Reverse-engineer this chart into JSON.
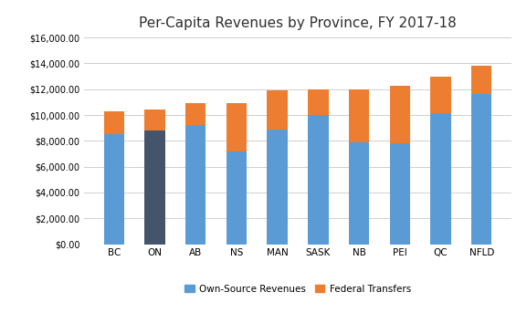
{
  "provinces": [
    "BC",
    "ON",
    "AB",
    "NS",
    "MAN",
    "SASK",
    "NB",
    "PEI",
    "QC",
    "NFLD"
  ],
  "own_source": [
    8550,
    8800,
    9200,
    7150,
    8900,
    10000,
    7900,
    7800,
    10150,
    11600
  ],
  "federal_transfers": [
    1750,
    1600,
    1700,
    3750,
    3000,
    2000,
    4100,
    4500,
    2800,
    2200
  ],
  "own_source_color_default": "#5b9bd5",
  "own_source_color_on": "#44546a",
  "federal_transfers_color": "#ed7d31",
  "title": "Per-Capita Revenues by Province, FY 2017-18",
  "ylim": [
    0,
    16000
  ],
  "yticks": [
    0,
    2000,
    4000,
    6000,
    8000,
    10000,
    12000,
    14000,
    16000
  ],
  "legend_labels": [
    "Own-Source Revenues",
    "Federal Transfers"
  ],
  "background_color": "#ffffff",
  "grid_color": "#d0d0d0"
}
